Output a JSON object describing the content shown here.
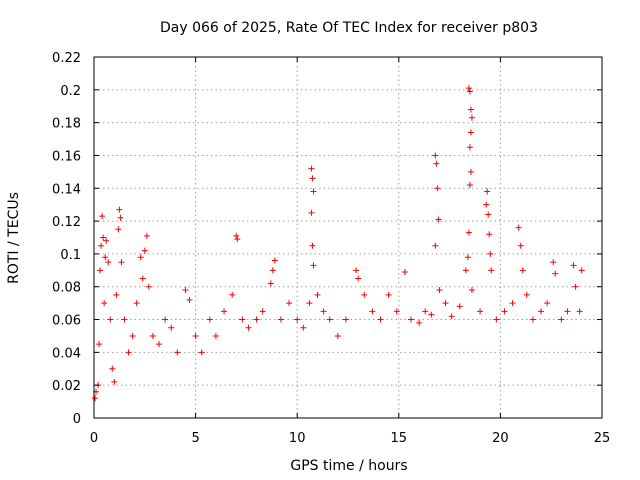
{
  "chart_data": {
    "type": "scatter",
    "title": "Day 066 of 2025, Rate Of TEC Index for receiver p803",
    "xlabel": "GPS time / hours",
    "ylabel": "ROTI / TECUs",
    "xlim": [
      0,
      25
    ],
    "ylim": [
      0,
      0.22
    ],
    "x_ticks": [
      "0",
      "5",
      "10",
      "15",
      "20",
      "25"
    ],
    "y_ticks": [
      "0",
      "0.02",
      "0.04",
      "0.06",
      "0.08",
      "0.1",
      "0.12",
      "0.14",
      "0.16",
      "0.18",
      "0.2",
      "0.22"
    ],
    "grid": true,
    "marker": "+",
    "color": "#ff0000",
    "series": [
      {
        "points": [
          [
            0.05,
            0.012
          ],
          [
            0.1,
            0.016
          ],
          [
            0.2,
            0.02
          ],
          [
            0.25,
            0.045
          ],
          [
            0.3,
            0.09
          ],
          [
            0.35,
            0.105
          ],
          [
            0.4,
            0.123
          ],
          [
            0.45,
            0.11
          ],
          [
            0.5,
            0.07
          ],
          [
            0.55,
            0.098
          ],
          [
            0.6,
            0.108
          ],
          [
            0.7,
            0.095
          ],
          [
            0.8,
            0.06
          ],
          [
            0.9,
            0.03
          ],
          [
            1.0,
            0.022
          ],
          [
            1.1,
            0.075
          ],
          [
            1.2,
            0.115
          ],
          [
            1.25,
            0.127
          ],
          [
            1.3,
            0.122
          ],
          [
            1.35,
            0.095
          ],
          [
            1.5,
            0.06
          ],
          [
            1.7,
            0.04
          ],
          [
            1.9,
            0.05
          ],
          [
            2.1,
            0.07
          ],
          [
            2.3,
            0.098
          ],
          [
            2.4,
            0.085
          ],
          [
            2.5,
            0.102
          ],
          [
            2.6,
            0.111
          ],
          [
            2.7,
            0.08
          ],
          [
            2.9,
            0.05
          ],
          [
            3.2,
            0.045
          ],
          [
            3.5,
            0.06
          ],
          [
            3.8,
            0.055
          ],
          [
            4.1,
            0.04
          ],
          [
            4.5,
            0.078
          ],
          [
            4.7,
            0.072
          ],
          [
            5.0,
            0.05
          ],
          [
            5.3,
            0.04
          ],
          [
            5.7,
            0.06
          ],
          [
            6.0,
            0.05
          ],
          [
            6.4,
            0.065
          ],
          [
            6.8,
            0.075
          ],
          [
            7.0,
            0.111
          ],
          [
            7.05,
            0.109
          ],
          [
            7.3,
            0.06
          ],
          [
            7.6,
            0.055
          ],
          [
            8.0,
            0.06
          ],
          [
            8.3,
            0.065
          ],
          [
            8.7,
            0.082
          ],
          [
            8.8,
            0.09
          ],
          [
            8.9,
            0.096
          ],
          [
            9.2,
            0.06
          ],
          [
            9.6,
            0.07
          ],
          [
            10.0,
            0.06
          ],
          [
            10.3,
            0.055
          ],
          [
            10.6,
            0.07
          ],
          [
            10.7,
            0.152
          ],
          [
            10.75,
            0.146
          ],
          [
            10.8,
            0.138
          ],
          [
            10.7,
            0.125
          ],
          [
            10.75,
            0.105
          ],
          [
            10.8,
            0.093
          ],
          [
            11.0,
            0.075
          ],
          [
            11.3,
            0.065
          ],
          [
            11.6,
            0.06
          ],
          [
            12.0,
            0.05
          ],
          [
            12.4,
            0.06
          ],
          [
            12.9,
            0.09
          ],
          [
            13.0,
            0.085
          ],
          [
            13.3,
            0.075
          ],
          [
            13.7,
            0.065
          ],
          [
            14.1,
            0.06
          ],
          [
            14.5,
            0.075
          ],
          [
            14.9,
            0.065
          ],
          [
            15.3,
            0.089
          ],
          [
            15.6,
            0.06
          ],
          [
            16.0,
            0.058
          ],
          [
            16.3,
            0.065
          ],
          [
            16.6,
            0.063
          ],
          [
            16.8,
            0.16
          ],
          [
            16.85,
            0.155
          ],
          [
            16.9,
            0.14
          ],
          [
            16.95,
            0.121
          ],
          [
            16.8,
            0.105
          ],
          [
            17.0,
            0.078
          ],
          [
            17.3,
            0.07
          ],
          [
            17.6,
            0.062
          ],
          [
            18.0,
            0.068
          ],
          [
            18.3,
            0.09
          ],
          [
            18.45,
            0.201
          ],
          [
            18.5,
            0.199
          ],
          [
            18.55,
            0.188
          ],
          [
            18.6,
            0.183
          ],
          [
            18.55,
            0.174
          ],
          [
            18.5,
            0.165
          ],
          [
            18.55,
            0.15
          ],
          [
            18.5,
            0.142
          ],
          [
            18.45,
            0.113
          ],
          [
            18.4,
            0.098
          ],
          [
            18.6,
            0.078
          ],
          [
            19.0,
            0.065
          ],
          [
            19.3,
            0.13
          ],
          [
            19.35,
            0.138
          ],
          [
            19.4,
            0.124
          ],
          [
            19.45,
            0.112
          ],
          [
            19.5,
            0.1
          ],
          [
            19.55,
            0.09
          ],
          [
            19.8,
            0.06
          ],
          [
            20.2,
            0.065
          ],
          [
            20.6,
            0.07
          ],
          [
            20.9,
            0.116
          ],
          [
            21.0,
            0.105
          ],
          [
            21.1,
            0.09
          ],
          [
            21.3,
            0.075
          ],
          [
            21.6,
            0.06
          ],
          [
            22.0,
            0.065
          ],
          [
            22.3,
            0.07
          ],
          [
            22.6,
            0.095
          ],
          [
            22.7,
            0.088
          ],
          [
            23.0,
            0.06
          ],
          [
            23.3,
            0.065
          ],
          [
            23.6,
            0.093
          ],
          [
            23.7,
            0.08
          ],
          [
            23.9,
            0.065
          ],
          [
            24.0,
            0.09
          ]
        ]
      }
    ]
  }
}
